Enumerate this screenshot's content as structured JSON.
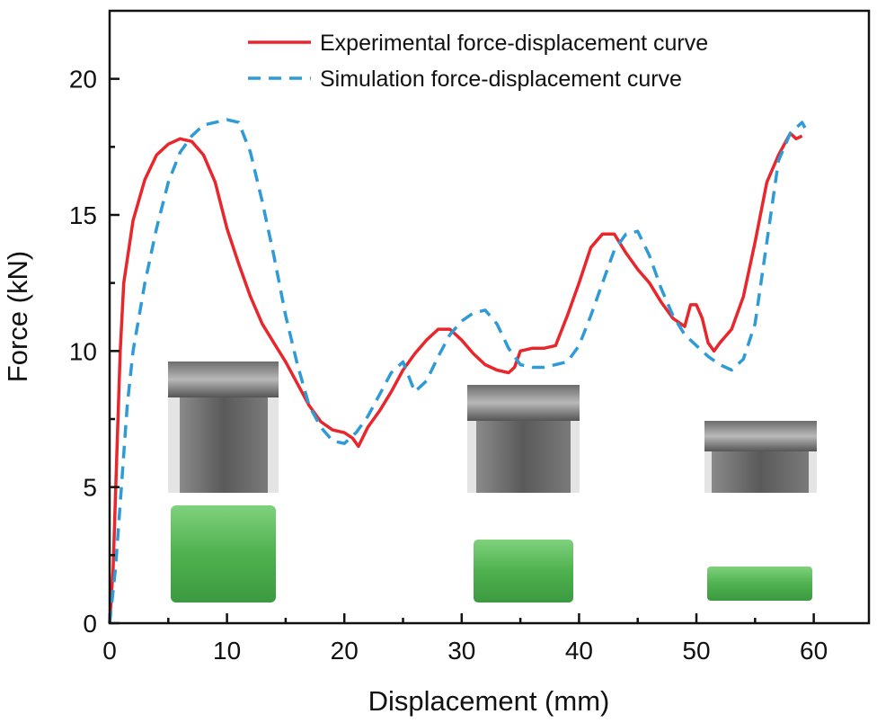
{
  "chart_data": {
    "type": "line",
    "xlabel": "Displacement (mm)",
    "ylabel": "Force (kN)",
    "xlim": [
      0,
      64.7
    ],
    "ylim": [
      0,
      22.5
    ],
    "xticks": [
      0,
      10,
      20,
      30,
      40,
      50,
      60
    ],
    "yticks": [
      0,
      5,
      10,
      15,
      20
    ],
    "grid": false,
    "legend_position": "top-right",
    "series": [
      {
        "name": "Experimental force-displacement curve",
        "color": "#e8262b",
        "style": "solid",
        "x": [
          0,
          0.3,
          0.6,
          0.9,
          1.2,
          2,
          3,
          4,
          5,
          6,
          7,
          8,
          9,
          10,
          11,
          12,
          13,
          14,
          15,
          16,
          17,
          18,
          19,
          20,
          20.7,
          21.2,
          22,
          23,
          24,
          25,
          26,
          27,
          28,
          29,
          30,
          31,
          32,
          33,
          34,
          34.5,
          35,
          36,
          37,
          38,
          39,
          40,
          41,
          42,
          43,
          44,
          45,
          46,
          47,
          48,
          49,
          49.5,
          50,
          50.5,
          51,
          51.5,
          52,
          53,
          54,
          55,
          56,
          57,
          58,
          58.5,
          59
        ],
        "y": [
          0,
          2,
          6,
          10,
          12.5,
          14.8,
          16.3,
          17.2,
          17.6,
          17.8,
          17.7,
          17.2,
          16.2,
          14.5,
          13.2,
          12,
          11,
          10.3,
          9.6,
          8.8,
          8,
          7.4,
          7.1,
          7,
          6.8,
          6.5,
          7.2,
          7.8,
          8.5,
          9.3,
          9.9,
          10.4,
          10.8,
          10.8,
          10.4,
          9.9,
          9.5,
          9.3,
          9.2,
          9.4,
          10,
          10.1,
          10.1,
          10.2,
          11.3,
          12.5,
          13.8,
          14.3,
          14.3,
          13.6,
          13,
          12.5,
          11.8,
          11.2,
          10.9,
          11.7,
          11.7,
          11.2,
          10.3,
          10,
          10.3,
          10.8,
          12,
          14,
          16.2,
          17.2,
          18,
          17.8,
          17.9
        ]
      },
      {
        "name": "Simulation force-displacement curve",
        "color": "#2f9bd6",
        "style": "dashed",
        "x": [
          0,
          0.5,
          1,
          1.5,
          2,
          3,
          4,
          5,
          6,
          7,
          8,
          9,
          10,
          11,
          12,
          13,
          14,
          15,
          16,
          17,
          18,
          19,
          20,
          21,
          22,
          23,
          24,
          25,
          26,
          27,
          28,
          29,
          30,
          31,
          32,
          33,
          34,
          35,
          36,
          37,
          38,
          39,
          40,
          41,
          42,
          43,
          44,
          45,
          46,
          47,
          48,
          49,
          50,
          51,
          52,
          53,
          54,
          55,
          56,
          57,
          58,
          59,
          59.5
        ],
        "y": [
          0,
          2,
          5,
          8,
          10,
          12.5,
          14.5,
          16.2,
          17.3,
          17.9,
          18.3,
          18.4,
          18.5,
          18.4,
          17.3,
          15.5,
          13.5,
          11.3,
          9.5,
          8,
          7.2,
          6.7,
          6.6,
          7,
          7.6,
          8.4,
          9.2,
          9.6,
          8.5,
          8.9,
          9.8,
          10.6,
          11.1,
          11.4,
          11.5,
          11,
          10.1,
          9.5,
          9.4,
          9.4,
          9.5,
          9.6,
          10.2,
          11.3,
          12.5,
          13.7,
          14.3,
          14.4,
          13.5,
          12.3,
          11.3,
          10.6,
          10.2,
          9.8,
          9.5,
          9.3,
          9.7,
          11,
          14,
          17,
          18,
          18.4,
          18
        ]
      }
    ]
  }
}
